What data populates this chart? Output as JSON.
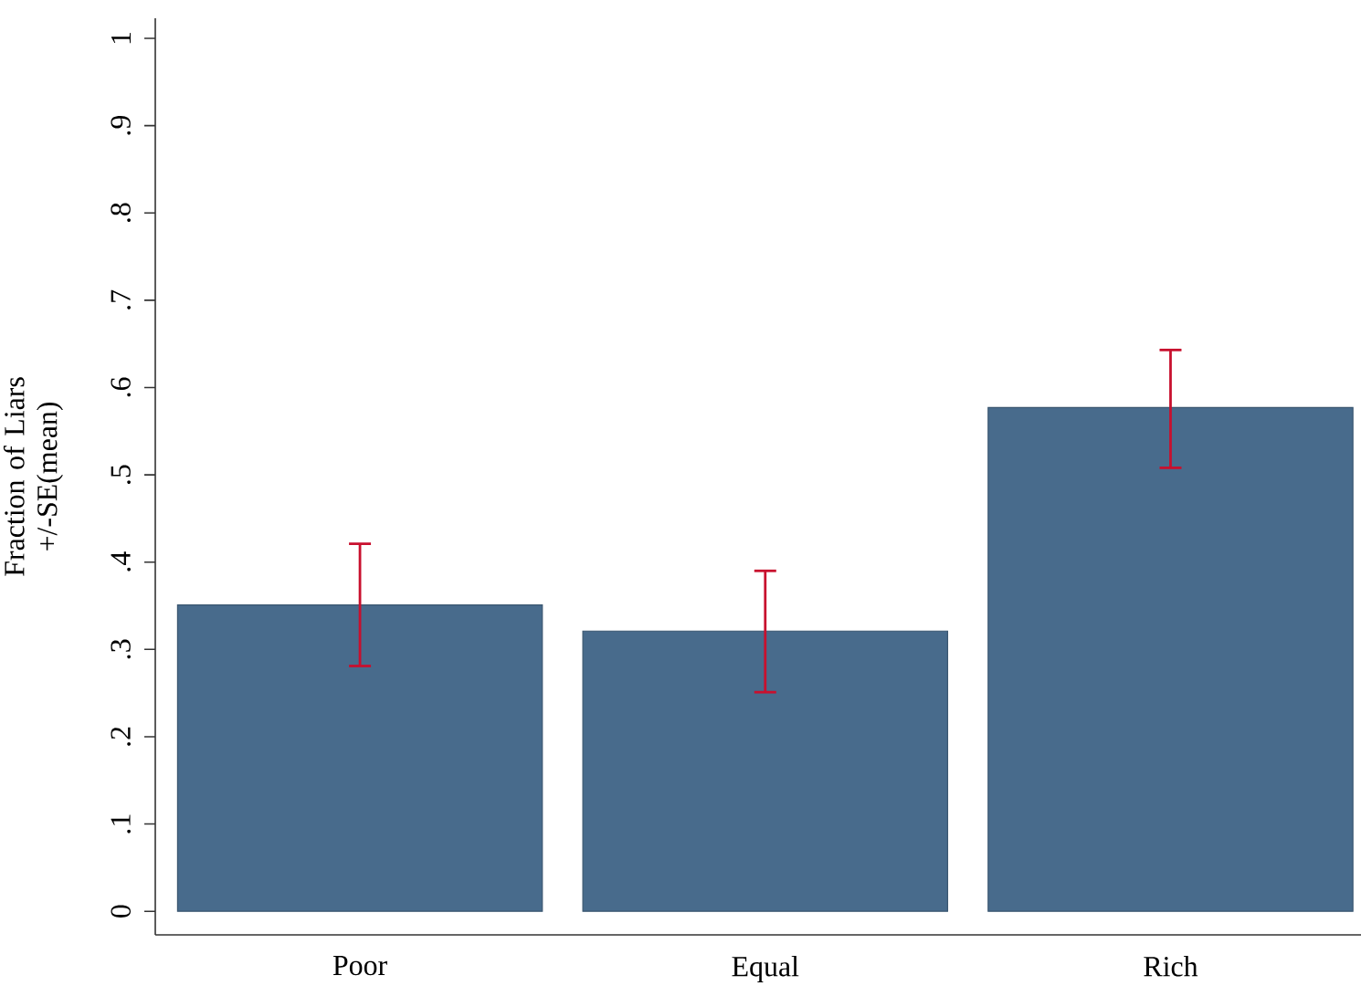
{
  "chart_data": {
    "type": "bar",
    "ylabel": "Fraction of Liars +/-SE(mean)",
    "categories": [
      "Poor",
      "Equal",
      "Rich"
    ],
    "values": [
      0.351,
      0.321,
      0.577
    ],
    "errors": [
      [
        0.281,
        0.421
      ],
      [
        0.251,
        0.39
      ],
      [
        0.508,
        0.643
      ]
    ],
    "color": "#486b8c",
    "ylim": [
      -0.027,
      1.023
    ],
    "yticks": [
      0,
      {
        "value": 0.1,
        "label": ".1"
      },
      {
        "value": 0.2,
        "label": ".2"
      },
      {
        "value": 0.3,
        "label": ".3"
      },
      {
        "value": 0.4,
        "label": ".4"
      },
      {
        "value": 0.5,
        "label": ".5"
      },
      {
        "value": 0.6,
        "label": ".6"
      },
      {
        "value": 0.7,
        "label": ".7"
      },
      {
        "value": 0.8,
        "label": ".8"
      },
      {
        "value": 0.9,
        "label": ".9"
      },
      1
    ],
    "grid": false
  }
}
